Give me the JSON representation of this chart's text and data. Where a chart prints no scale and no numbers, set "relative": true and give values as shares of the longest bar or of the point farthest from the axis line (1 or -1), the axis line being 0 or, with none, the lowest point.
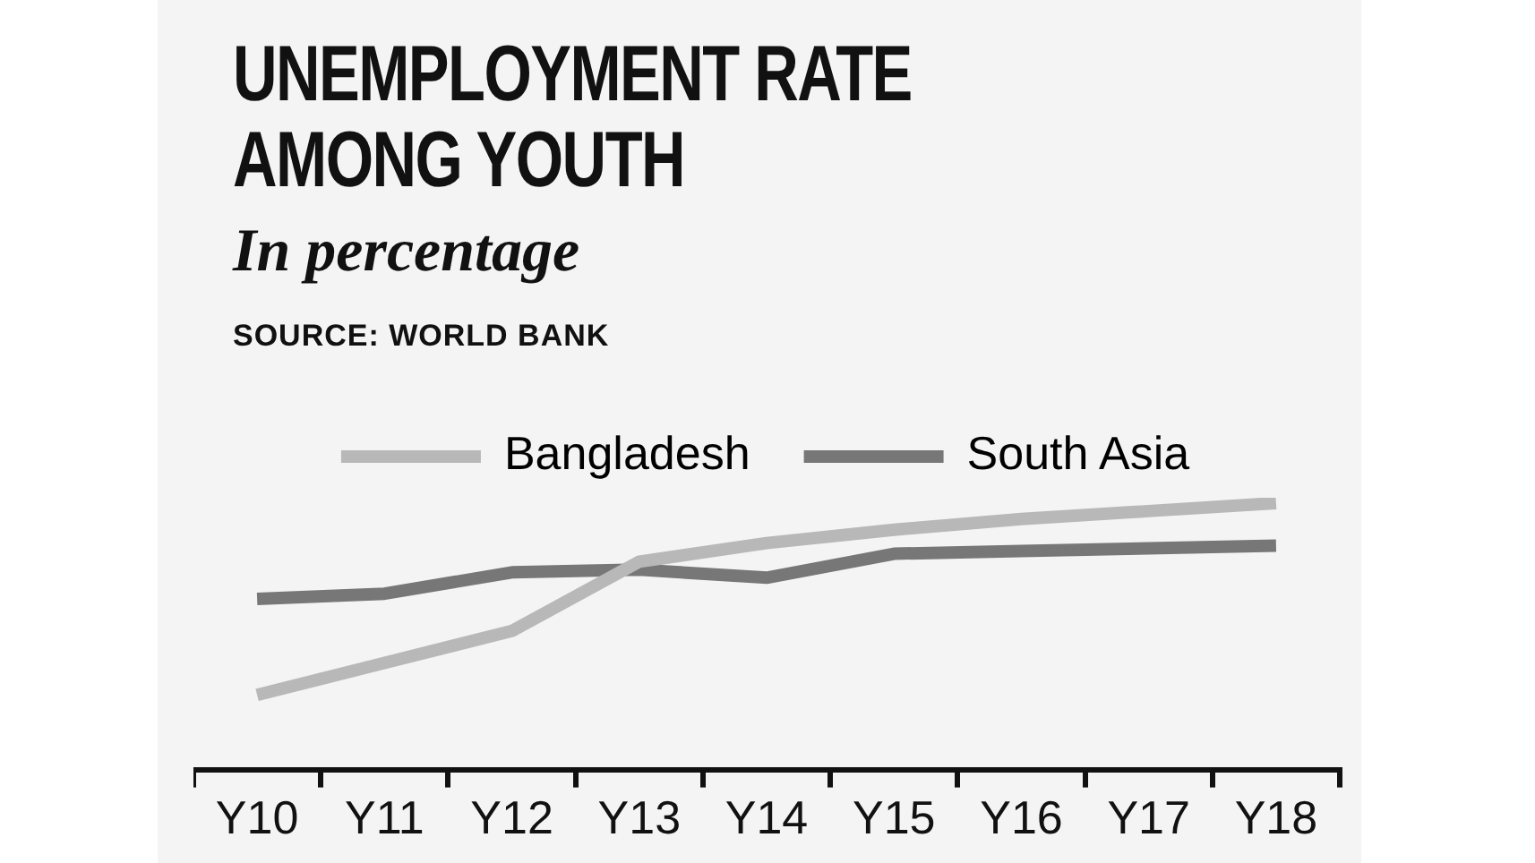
{
  "chart_data": {
    "type": "line",
    "title": "UNEMPLOYMENT RATE AMONG YOUTH",
    "subtitle": "In percentage",
    "annotations": [
      "SOURCE: WORLD BANK"
    ],
    "relative": true,
    "legend": "top",
    "marker": "none",
    "line_style": "solid",
    "categories": [
      "Y10",
      "Y11",
      "Y12",
      "Y13",
      "Y14",
      "Y15",
      "Y16",
      "Y17",
      "Y18"
    ],
    "series": [
      {
        "name": "Bangladesh",
        "color": "#b8b8b8",
        "values": [
          0.28,
          0.4,
          0.52,
          0.78,
          0.85,
          0.9,
          0.94,
          0.97,
          1.0
        ]
      },
      {
        "name": "South Asia",
        "color": "#777777",
        "values": [
          0.64,
          0.66,
          0.74,
          0.75,
          0.72,
          0.81,
          0.82,
          0.83,
          0.84
        ]
      }
    ]
  }
}
